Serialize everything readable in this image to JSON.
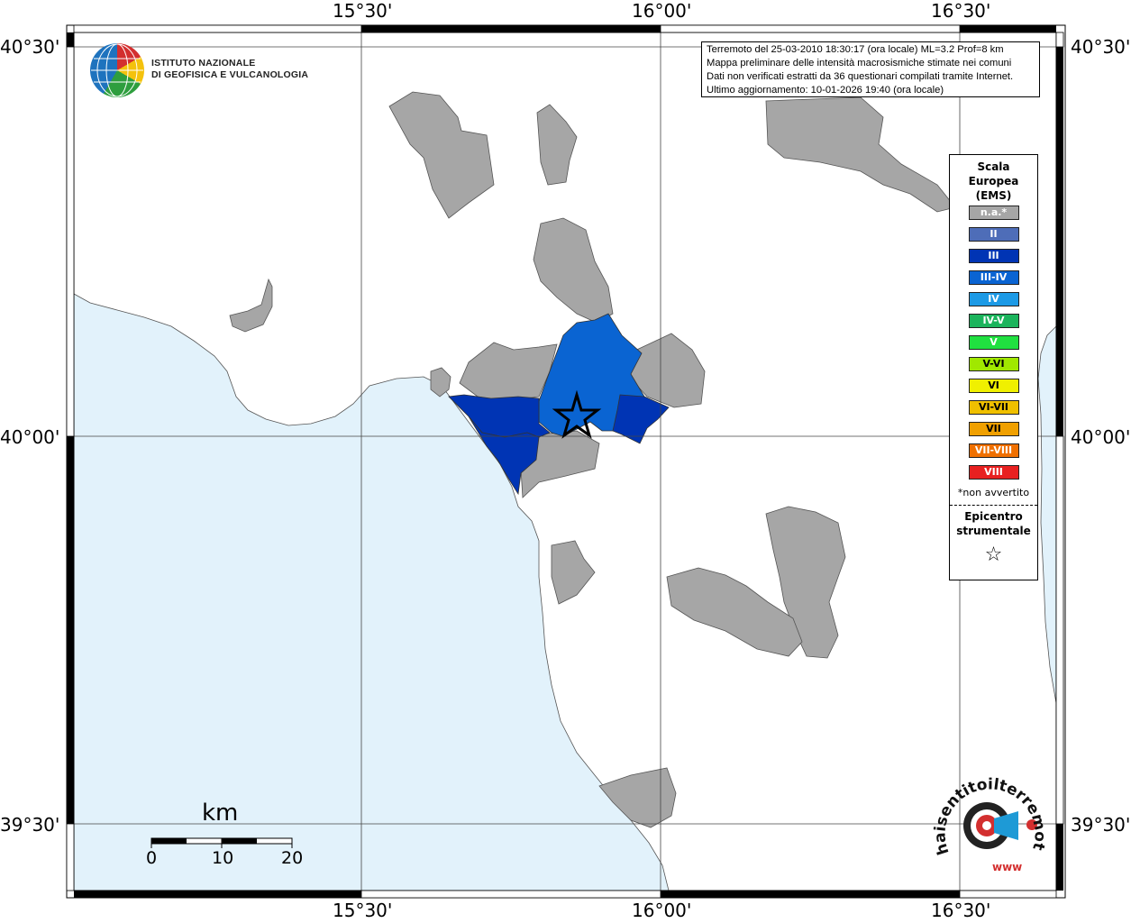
{
  "map": {
    "lon_ticks": [
      "15°30'",
      "16°00'",
      "16°30'"
    ],
    "lat_ticks": [
      "40°30'",
      "40°00'",
      "39°30'"
    ]
  },
  "logo": {
    "line1": "ISTITUTO NAZIONALE",
    "line2": "DI GEOFISICA E VULCANOLOGIA"
  },
  "info": {
    "lines": [
      "Terremoto del 25-03-2010 18:30:17 (ora locale) ML=3.2 Prof=8 km",
      "Mappa preliminare delle intensità macrosismiche stimate nei comuni",
      "Dati non verificati estratti da 36 questionari compilati tramite Internet.",
      "Ultimo aggiornamento: 10-01-2026 19:40 (ora locale)"
    ]
  },
  "legend": {
    "title_lines": [
      "Scala",
      "Europea",
      "(EMS)"
    ],
    "items": [
      {
        "label": "n.a.*",
        "color": "#a6a6a6"
      },
      {
        "label": "II",
        "color": "#4e6db8"
      },
      {
        "label": "III",
        "color": "#0034b4"
      },
      {
        "label": "III-IV",
        "color": "#0a64d2"
      },
      {
        "label": "IV",
        "color": "#1c9ae6"
      },
      {
        "label": "IV-V",
        "color": "#1bb45c"
      },
      {
        "label": "V",
        "color": "#20e040"
      },
      {
        "label": "V-VI",
        "color": "#a0e800"
      },
      {
        "label": "VI",
        "color": "#f0f000"
      },
      {
        "label": "VI-VII",
        "color": "#f0c000"
      },
      {
        "label": "VII",
        "color": "#f0a000"
      },
      {
        "label": "VII-VIII",
        "color": "#f07000"
      },
      {
        "label": "VIII",
        "color": "#e82020"
      }
    ],
    "note": "*non avvertito",
    "epicenter_lines": [
      "Epicentro",
      "strumentale"
    ],
    "epicenter_symbol": "☆"
  },
  "scalebar": {
    "unit": "km",
    "labels": [
      "0",
      "10",
      "20"
    ]
  },
  "brand": {
    "text": "haisentitoilterremoto.it",
    "url": "www"
  },
  "colors": {
    "sea": "#e2f2fb",
    "land": "#ffffff",
    "na": "#a6a6a6",
    "III": "#0034b4",
    "III-IV": "#0a64d2"
  }
}
